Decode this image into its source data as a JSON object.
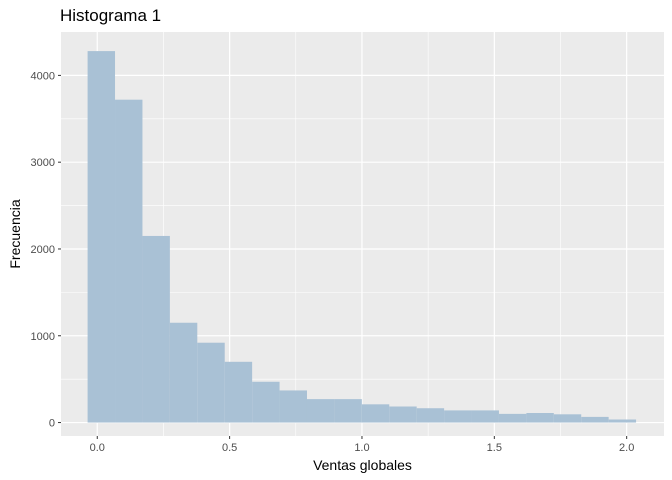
{
  "chart_data": {
    "type": "bar",
    "title": "Histograma 1",
    "xlabel": "Ventas globales",
    "ylabel": "Frecuencia",
    "bin_width": 0.1036,
    "bin_start": -0.0365,
    "values": [
      4280,
      3720,
      2150,
      1150,
      920,
      700,
      470,
      370,
      270,
      270,
      210,
      185,
      165,
      140,
      140,
      100,
      110,
      95,
      65,
      35
    ],
    "x_ticks": [
      0.0,
      0.5,
      1.0,
      1.5,
      2.0
    ],
    "x_tick_labels": [
      "0.0",
      "0.5",
      "1.0",
      "1.5",
      "2.0"
    ],
    "y_ticks": [
      0,
      1000,
      2000,
      3000,
      4000
    ],
    "y_tick_labels": [
      "0",
      "1000",
      "2000",
      "3000",
      "4000"
    ],
    "xlim": [
      -0.137,
      2.141
    ],
    "ylim": [
      -155,
      4500
    ],
    "grid": true,
    "colors": {
      "panel_background": "#ebebeb",
      "grid": "#ffffff",
      "bar_fill": "#a9c1d5"
    }
  }
}
